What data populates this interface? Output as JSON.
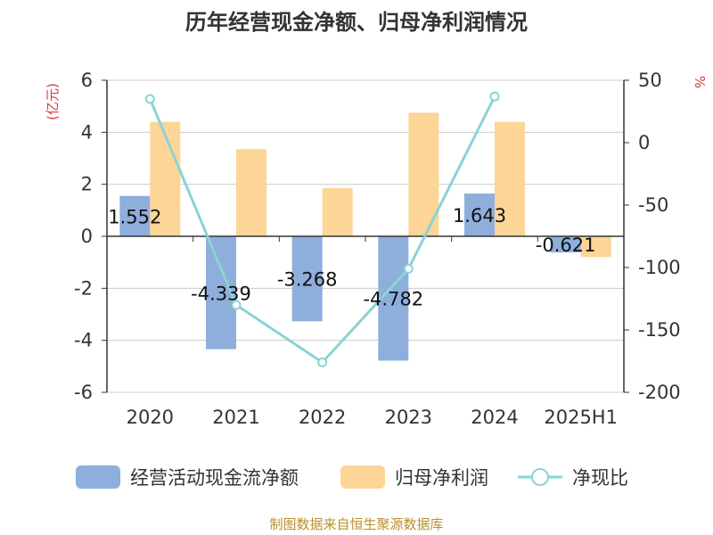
{
  "chart_data": {
    "type": "bar",
    "title": "历年经营现金净额、归母净利润情况",
    "categories": [
      "2020",
      "2021",
      "2022",
      "2023",
      "2024",
      "2025H1"
    ],
    "series": [
      {
        "name": "经营活动现金流净额",
        "kind": "bar",
        "axis": "left",
        "color": "#8eaedc",
        "values": [
          1.552,
          -4.339,
          -3.268,
          -4.782,
          1.643,
          -0.621
        ],
        "labels": [
          "1.552",
          "-4.339",
          "-3.268",
          "-4.782",
          "1.643",
          "-0.621"
        ]
      },
      {
        "name": "归母净利润",
        "kind": "bar",
        "axis": "left",
        "color": "#fdd597",
        "values": [
          4.4,
          3.35,
          1.85,
          4.75,
          4.4,
          -0.8
        ]
      },
      {
        "name": "净现比",
        "kind": "line",
        "axis": "right",
        "color": "#8ad3d6",
        "values": [
          35,
          -130,
          -176,
          -101,
          37,
          null
        ]
      }
    ],
    "y_left": {
      "unit": "(亿元)",
      "min": -6,
      "max": 6,
      "ticks": [
        "-6",
        "-4",
        "-2",
        "0",
        "2",
        "4",
        "6"
      ]
    },
    "y_right": {
      "unit": "%",
      "min": -200,
      "max": 50,
      "ticks": [
        "-200",
        "-150",
        "-100",
        "-50",
        "0",
        "50"
      ]
    },
    "legend_position": "bottom",
    "grid": true,
    "unit_color": "#d93a3a",
    "axis_color": "#333333",
    "grid_color": "#cccccc"
  },
  "footer": {
    "source": "制图数据来自恒生聚源数据库"
  }
}
